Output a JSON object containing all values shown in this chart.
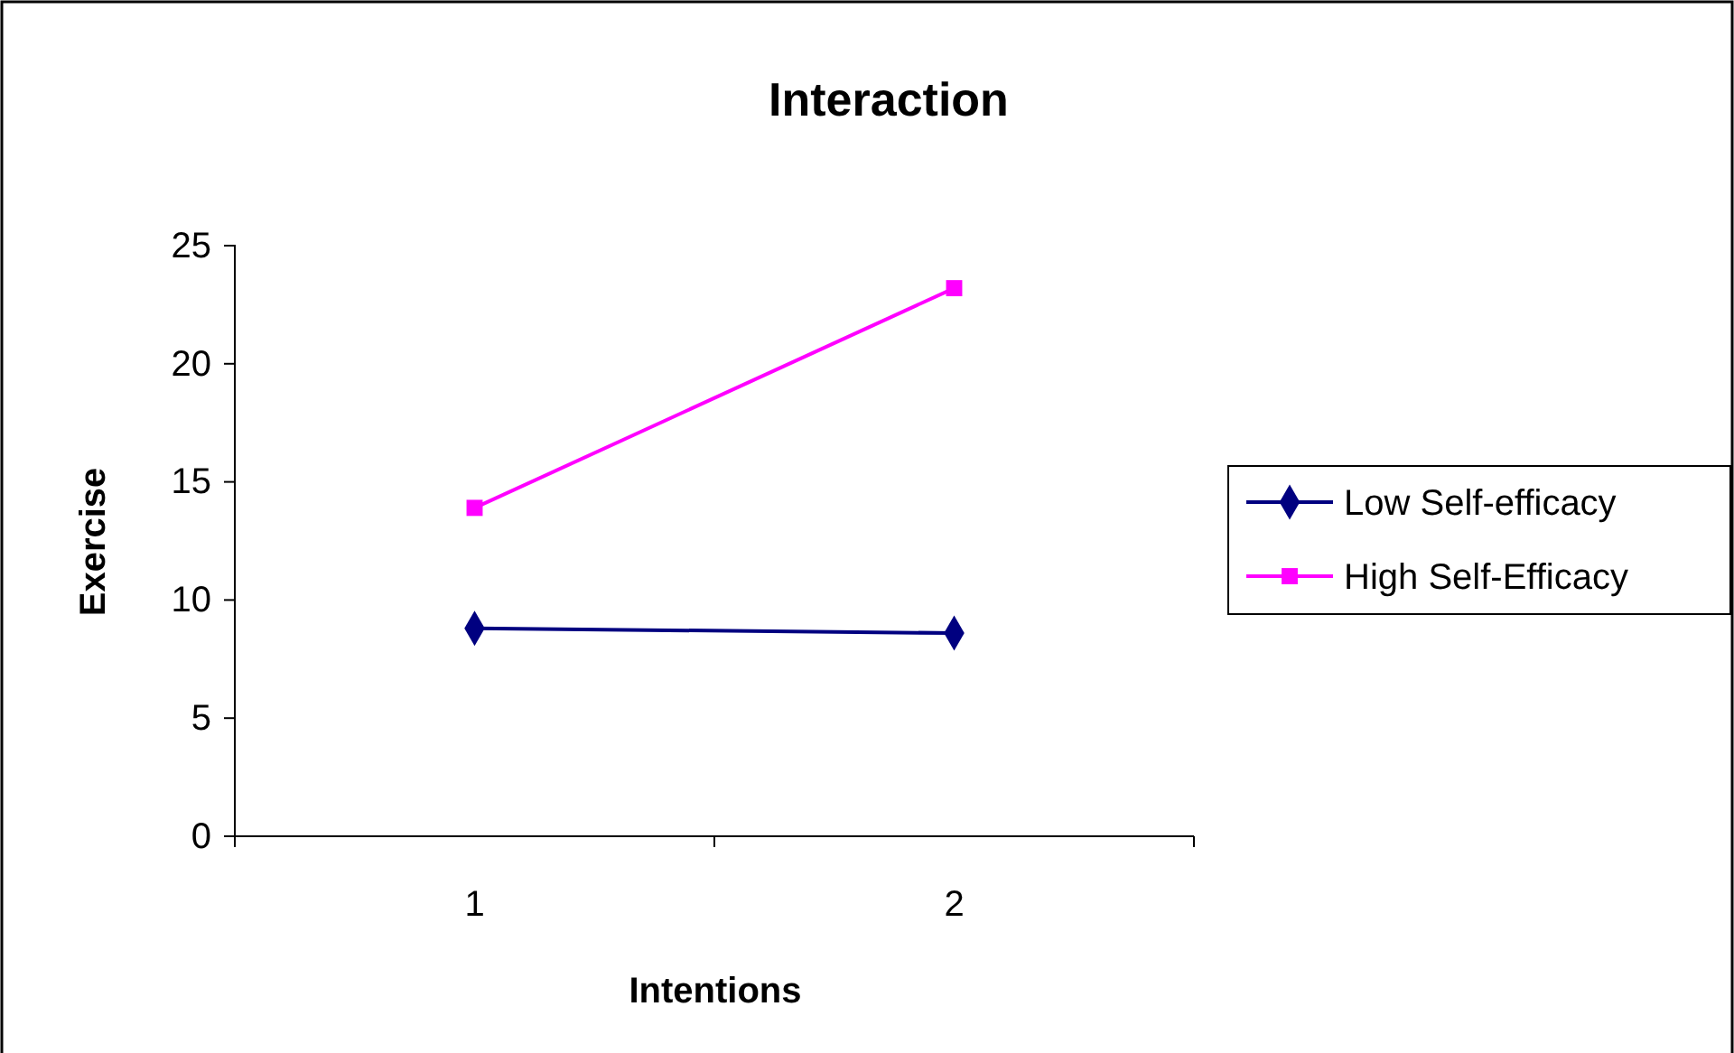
{
  "chart_data": {
    "type": "line",
    "title": "Interaction",
    "xlabel": "Intentions",
    "ylabel": "Exercise",
    "categories": [
      "1",
      "2"
    ],
    "series": [
      {
        "name": "Low Self-efficacy",
        "color": "#000080",
        "marker": "diamond",
        "values": [
          8.8,
          8.6
        ]
      },
      {
        "name": "High Self-Efficacy",
        "color": "#ff00ff",
        "marker": "square",
        "values": [
          13.9,
          23.2
        ]
      }
    ],
    "ylim": [
      0,
      25
    ],
    "yticks": [
      0,
      5,
      10,
      15,
      20,
      25
    ],
    "grid": false,
    "legend": "right"
  }
}
